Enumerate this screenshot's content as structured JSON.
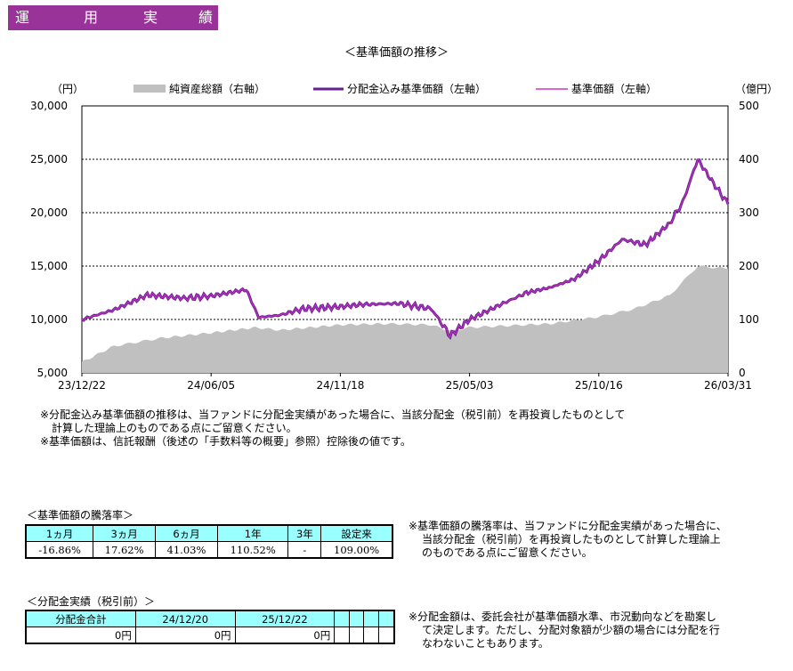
{
  "header": {
    "title_chars": [
      "運",
      "用",
      "実",
      "績"
    ]
  },
  "chart_title": "＜基準価額の推移＞",
  "chart_data": {
    "type": "line",
    "left_unit": "（円）",
    "right_unit": "（億円）",
    "legend": [
      "純資産総額（右軸）",
      "分配金込み基準価額（左軸）",
      "基準価額（左軸）"
    ],
    "left_ticks": [
      "30,000",
      "25,000",
      "20,000",
      "15,000",
      "10,000",
      "5,000"
    ],
    "right_ticks": [
      "500",
      "400",
      "300",
      "200",
      "100",
      "0"
    ],
    "x_ticks": [
      "23/12/22",
      "24/06/05",
      "24/11/18",
      "25/05/03",
      "25/10/16",
      "26/03/31"
    ],
    "ylim_left": [
      5000,
      30000
    ],
    "ylim_right": [
      0,
      500
    ],
    "colors": {
      "nav_line": "#6a1f8f",
      "price_line": "#cc33cc",
      "assets_area": "#c0c0c0"
    },
    "series": [
      {
        "name": "分配金込み基準価額（左軸）",
        "x": [
          "23/12/22",
          "24/02/01",
          "24/03/15",
          "24/05/01",
          "24/06/05",
          "24/07/20",
          "24/08/05",
          "24/09/01",
          "24/10/01",
          "24/11/18",
          "24/12/15",
          "25/02/01",
          "25/03/15",
          "25/04/08",
          "25/05/03",
          "25/06/15",
          "25/07/15",
          "25/08/15",
          "25/09/15",
          "25/10/16",
          "25/11/15",
          "25/12/15",
          "26/01/15",
          "26/02/01",
          "26/02/20",
          "26/03/10",
          "26/03/31"
        ],
        "values": [
          10000,
          10900,
          12300,
          12000,
          12200,
          12800,
          10200,
          10400,
          11000,
          11200,
          11400,
          11500,
          11000,
          8500,
          10000,
          11500,
          12500,
          13000,
          13800,
          15500,
          17500,
          17000,
          19000,
          21000,
          25000,
          23000,
          20800
        ]
      },
      {
        "name": "純資産総額（右軸）",
        "x": [
          "23/12/22",
          "24/02/01",
          "24/04/01",
          "24/06/05",
          "24/08/01",
          "24/09/01",
          "24/11/18",
          "25/01/15",
          "25/03/15",
          "25/04/08",
          "25/05/03",
          "25/07/15",
          "25/08/15",
          "25/10/16",
          "25/12/01",
          "26/01/15",
          "26/02/20",
          "26/03/31"
        ],
        "values": [
          20,
          50,
          65,
          75,
          85,
          80,
          90,
          92,
          90,
          78,
          85,
          90,
          92,
          105,
          120,
          145,
          200,
          195
        ]
      }
    ]
  },
  "notes_chart": [
    "※分配金込み基準価額の推移は、当ファンドに分配金実績があった場合に、当該分配金（税引前）を再投資したものとして",
    "計算した理論上のものである点にご留意ください。",
    "※基準価額は、信託報酬（後述の「手数料等の概要」参照）控除後の値です。"
  ],
  "perf": {
    "title": "＜基準価額の騰落率＞",
    "headers": [
      "1ヵ月",
      "3ヵ月",
      "6ヵ月",
      "1年",
      "3年",
      "設定来"
    ],
    "values": [
      "-16.86%",
      "17.62%",
      "41.03%",
      "110.52%",
      "-",
      "109.00%"
    ],
    "note": [
      "※基準価額の騰落率は、当ファンドに分配金実績があった場合に、",
      "当該分配金（税引前）を再投資したものとして計算した理論上",
      "のものである点にご留意ください。"
    ]
  },
  "dist": {
    "title": "＜分配金実績（税引前）＞",
    "headers": [
      "分配金合計",
      "24/12/20",
      "25/12/22",
      "",
      "",
      "",
      ""
    ],
    "values": [
      "0円",
      "0円",
      "0円",
      "",
      "",
      "",
      ""
    ],
    "note": [
      "※分配金額は、委託会社が基準価額水準、市況動向などを勘案し",
      "て決定します。ただし、分配対象額が少額の場合には分配を行",
      "なわないこともあります。"
    ]
  }
}
